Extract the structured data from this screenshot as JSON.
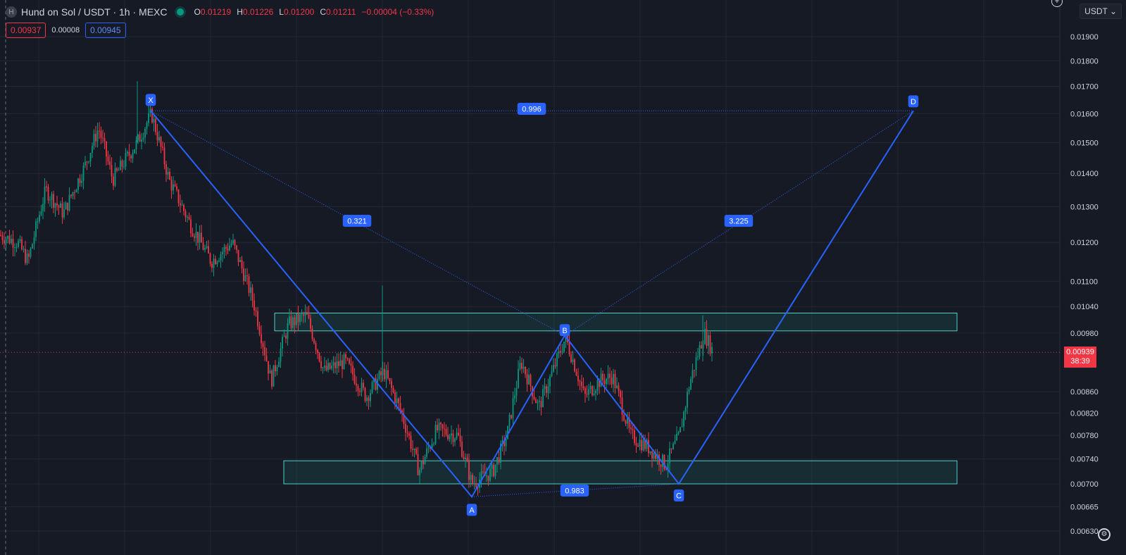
{
  "header": {
    "logo_letter": "H",
    "title": "Hund on Sol / USDT · 1h · MEXC",
    "ohlc": [
      {
        "key": "O",
        "value": "0.01219"
      },
      {
        "key": "H",
        "value": "0.01226"
      },
      {
        "key": "L",
        "value": "0.01200"
      },
      {
        "key": "C",
        "value": "0.01211"
      },
      {
        "key": "",
        "value": "−0.00004 (−0.33%)"
      }
    ],
    "bid": "0.00937",
    "spread": "0.00008",
    "ask": "0.00945"
  },
  "currency_selector": {
    "label": "USDT ⌄"
  },
  "icons": {
    "plus": "plus-icon",
    "gear": "gear-icon"
  },
  "price_axis": {
    "ticks": [
      "0.01900",
      "0.01800",
      "0.01700",
      "0.01600",
      "0.01500",
      "0.01400",
      "0.01300",
      "0.01200",
      "0.01100",
      "0.01040",
      "0.00980",
      "0.00860",
      "0.00820",
      "0.00780",
      "0.00740",
      "0.00700",
      "0.00665",
      "0.00630"
    ],
    "last_price": "0.00939",
    "countdown": "38:39"
  },
  "chart_data": {
    "type": "candlestick",
    "symbol": "Hund on Sol / USDT",
    "interval": "1h",
    "exchange": "MEXC",
    "y_scale": "log",
    "approx_price_path": [
      {
        "x": 0,
        "close": 0.0122
      },
      {
        "x": 25,
        "close": 0.012
      },
      {
        "x": 40,
        "close": 0.0115
      },
      {
        "x": 65,
        "close": 0.0135
      },
      {
        "x": 90,
        "close": 0.0128
      },
      {
        "x": 120,
        "close": 0.0142
      },
      {
        "x": 140,
        "close": 0.0155
      },
      {
        "x": 160,
        "close": 0.0138
      },
      {
        "x": 195,
        "close": 0.015
      },
      {
        "x": 215,
        "close": 0.016
      },
      {
        "x": 240,
        "close": 0.0138
      },
      {
        "x": 270,
        "close": 0.0125
      },
      {
        "x": 300,
        "close": 0.0115
      },
      {
        "x": 330,
        "close": 0.012
      },
      {
        "x": 360,
        "close": 0.0105
      },
      {
        "x": 385,
        "close": 0.0088
      },
      {
        "x": 410,
        "close": 0.01
      },
      {
        "x": 435,
        "close": 0.0102
      },
      {
        "x": 460,
        "close": 0.009
      },
      {
        "x": 490,
        "close": 0.0092
      },
      {
        "x": 520,
        "close": 0.0085
      },
      {
        "x": 545,
        "close": 0.009
      },
      {
        "x": 570,
        "close": 0.0082
      },
      {
        "x": 595,
        "close": 0.0072
      },
      {
        "x": 620,
        "close": 0.0079
      },
      {
        "x": 650,
        "close": 0.0078
      },
      {
        "x": 670,
        "close": 0.007
      },
      {
        "x": 700,
        "close": 0.0072
      },
      {
        "x": 720,
        "close": 0.0078
      },
      {
        "x": 740,
        "close": 0.0092
      },
      {
        "x": 765,
        "close": 0.0083
      },
      {
        "x": 785,
        "close": 0.009
      },
      {
        "x": 803,
        "close": 0.0097
      },
      {
        "x": 830,
        "close": 0.0085
      },
      {
        "x": 850,
        "close": 0.0088
      },
      {
        "x": 870,
        "close": 0.0089
      },
      {
        "x": 895,
        "close": 0.0078
      },
      {
        "x": 920,
        "close": 0.0076
      },
      {
        "x": 945,
        "close": 0.0073
      },
      {
        "x": 965,
        "close": 0.0078
      },
      {
        "x": 980,
        "close": 0.0088
      },
      {
        "x": 1000,
        "close": 0.0098
      },
      {
        "x": 1013,
        "close": 0.00939
      }
    ],
    "harmonic_pattern": {
      "points": [
        {
          "label": "X",
          "price": 0.0161
        },
        {
          "label": "A",
          "price": 0.0068
        },
        {
          "label": "B",
          "price": 0.00975
        },
        {
          "label": "C",
          "price": 0.007
        },
        {
          "label": "D",
          "price": 0.0161
        }
      ],
      "ratios": [
        {
          "between": "XA-AB",
          "value": "0.321"
        },
        {
          "between": "AB-BC",
          "value": "0.983"
        },
        {
          "between": "BC-CD",
          "value": "3.225"
        },
        {
          "between": "XA-XD",
          "value": "0.996"
        }
      ]
    },
    "zones": [
      {
        "name": "resistance",
        "low": 0.00985,
        "high": 0.01025
      },
      {
        "name": "support",
        "low": 0.007,
        "high": 0.00737
      }
    ],
    "last_price": 0.00939,
    "colors": {
      "up": "#089981",
      "down": "#f23645",
      "pattern": "#2962ff",
      "zone": "#22ab94"
    }
  }
}
